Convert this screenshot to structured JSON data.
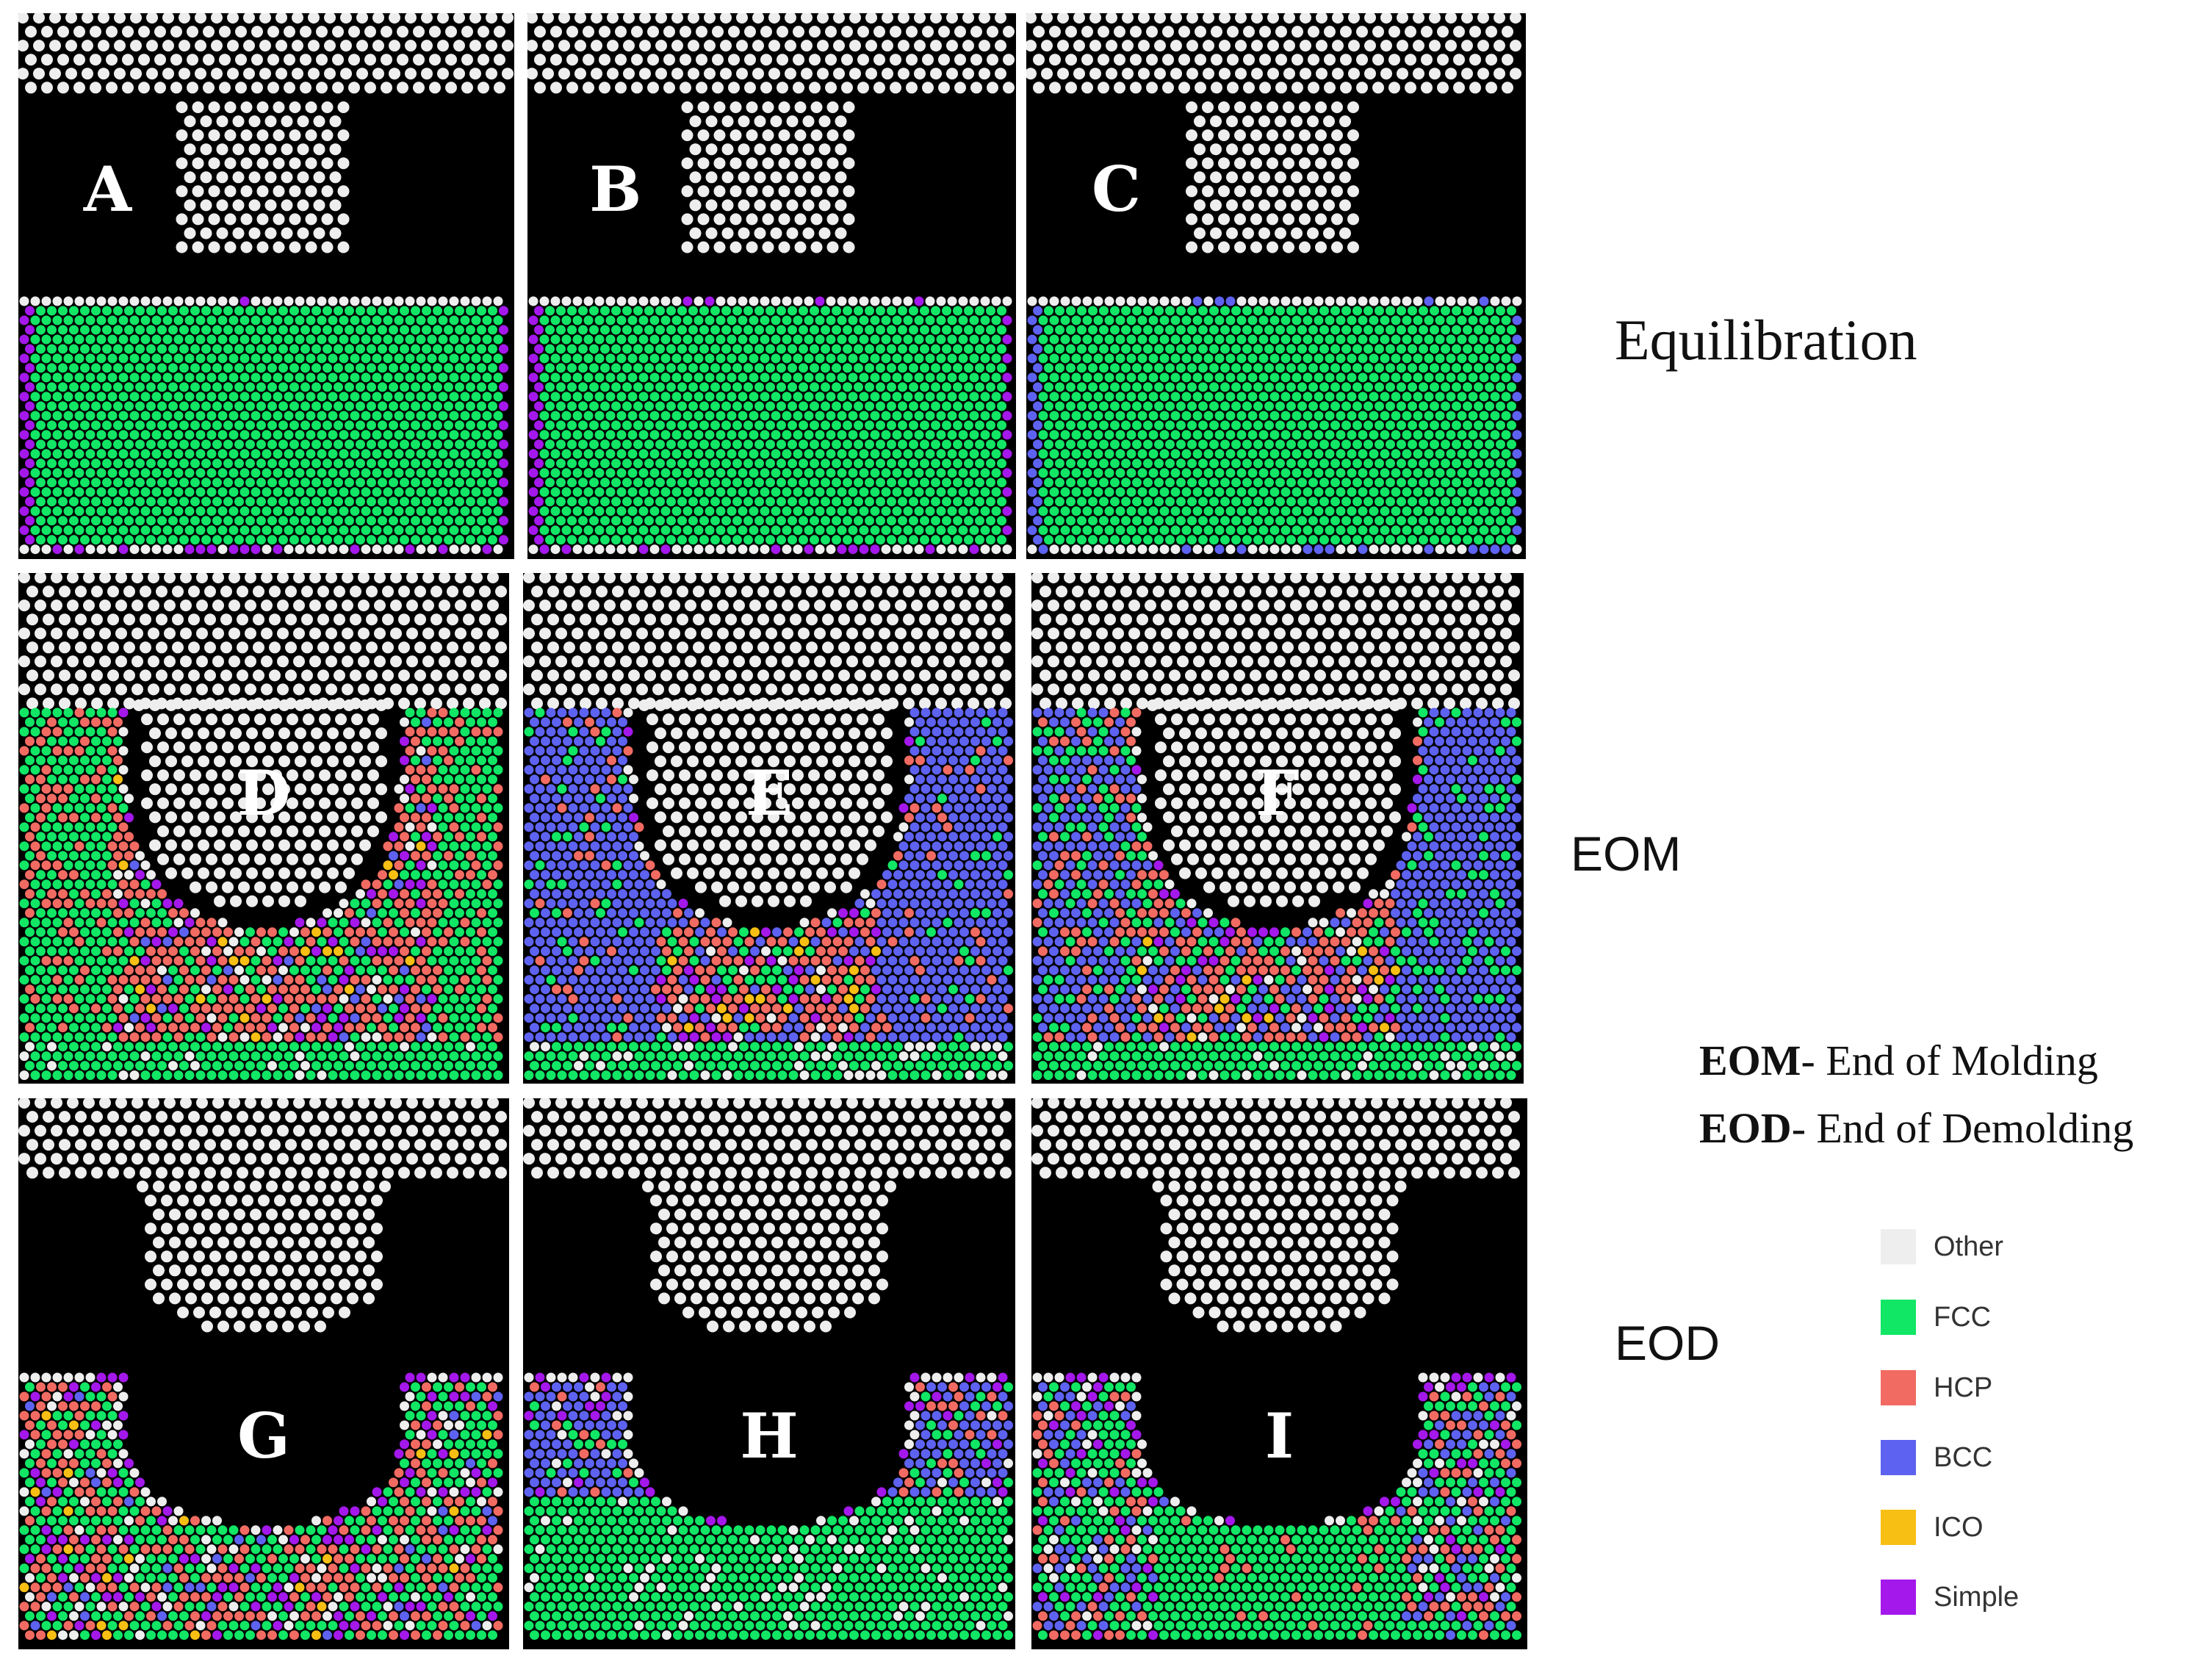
{
  "panels": [
    {
      "letter": "A",
      "state": "equilibration",
      "mold": "flat"
    },
    {
      "letter": "B",
      "state": "equilibration",
      "mold": "flat"
    },
    {
      "letter": "C",
      "state": "equilibration",
      "mold": "flat"
    },
    {
      "letter": "D",
      "state": "eom",
      "mold": "flat"
    },
    {
      "letter": "E",
      "state": "eom",
      "mold": "flat"
    },
    {
      "letter": "F",
      "state": "eom",
      "mold": "flat"
    },
    {
      "letter": "G",
      "state": "eod",
      "mold": "flat"
    },
    {
      "letter": "H",
      "state": "eod",
      "mold": "flat"
    },
    {
      "letter": "I",
      "state": "eod",
      "mold": "flat"
    }
  ],
  "row_labels": {
    "equilibration": "Equilibration",
    "eom": "EOM",
    "eod": "EOD"
  },
  "abbreviations": [
    {
      "abbr": "EOM",
      "text": "- End of Molding"
    },
    {
      "abbr": "EOD",
      "text": "- End of Demolding"
    }
  ],
  "legend": [
    {
      "label": "Other",
      "color": "#eeeeee"
    },
    {
      "label": "FCC",
      "color": "#11e665"
    },
    {
      "label": "HCP",
      "color": "#f26b62"
    },
    {
      "label": "BCC",
      "color": "#5e62f0"
    },
    {
      "label": "ICO",
      "color": "#f7bf14"
    },
    {
      "label": "Simple",
      "color": "#a418ec"
    }
  ]
}
